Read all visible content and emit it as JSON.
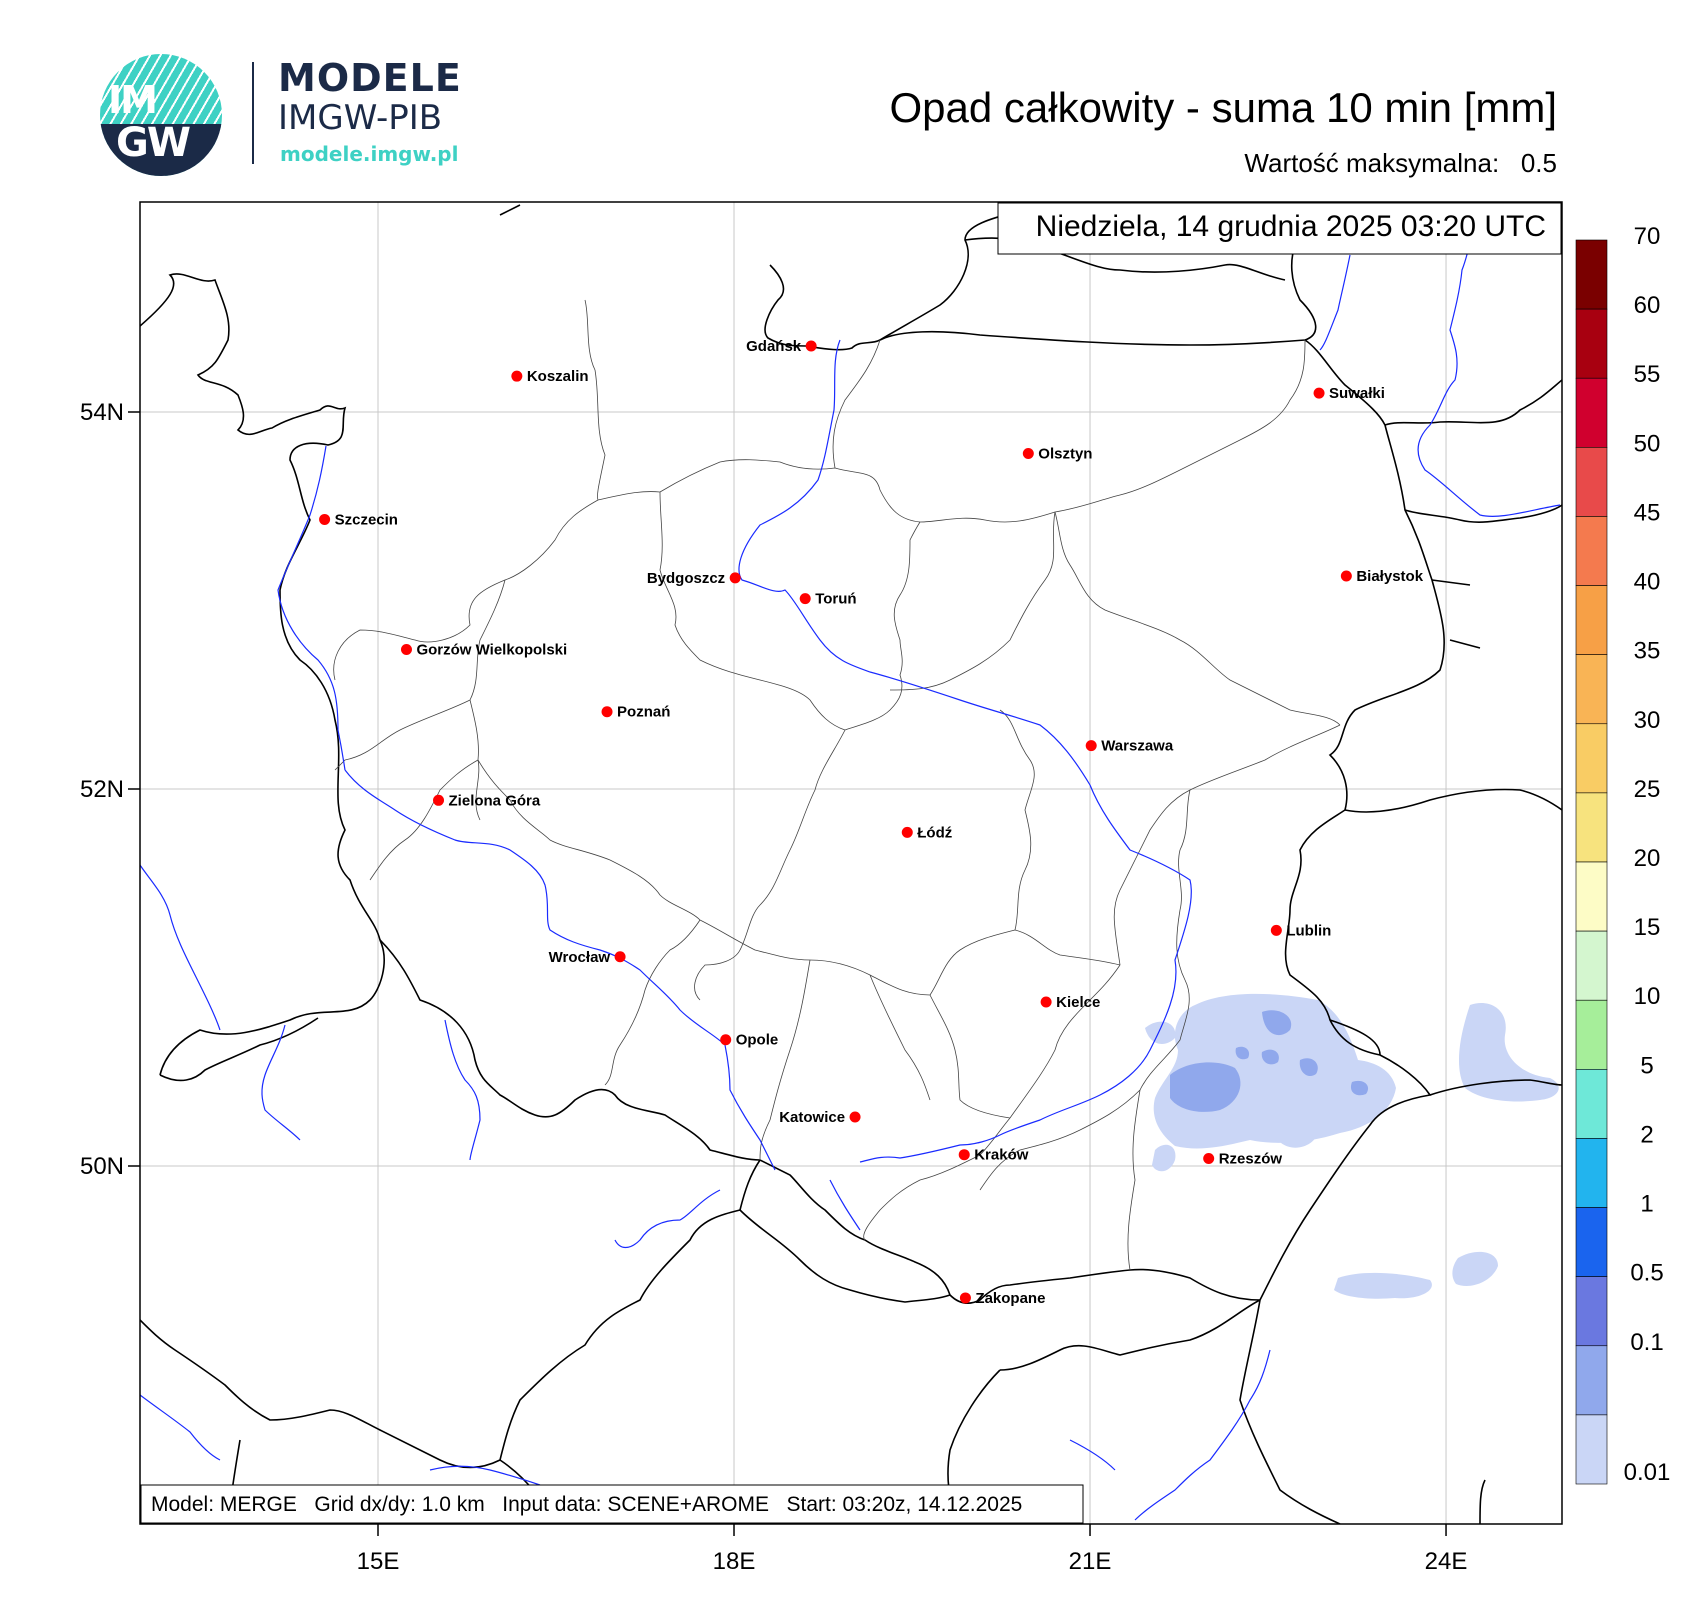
{
  "logo": {
    "text_top": "IM",
    "text_bottom": "GW",
    "name": "MODELE",
    "org": "IMGW-PIB",
    "url": "modele.imgw.pl"
  },
  "title": "Opad całkowity - suma 10 min [mm]",
  "max_label": "Wartość maksymalna:",
  "max_value": "0.5",
  "date": "Niedziela, 14 grudnia 2025 03:20 UTC",
  "info": "Model: MERGE   Grid dx/dy: 1.0 km   Input data: SCENE+AROME   Start: 03:20z, 14.12.2025",
  "lon_ticks": [
    {
      "lon": 15,
      "label": "15E"
    },
    {
      "lon": 18,
      "label": "18E"
    },
    {
      "lon": 21,
      "label": "21E"
    },
    {
      "lon": 24,
      "label": "24E"
    }
  ],
  "lat_ticks": [
    {
      "lat": 54,
      "label": "54N"
    },
    {
      "lat": 52,
      "label": "52N"
    },
    {
      "lat": 50,
      "label": "50N"
    }
  ],
  "colorbar": {
    "labels": [
      "70",
      "60",
      "55",
      "50",
      "45",
      "40",
      "35",
      "30",
      "25",
      "20",
      "15",
      "10",
      "5",
      "2",
      "1",
      "0.5",
      "0.1",
      "0.01"
    ],
    "colors": [
      "#7a0000",
      "#a80010",
      "#d0002e",
      "#e84a4a",
      "#f47a4e",
      "#f7a046",
      "#f9b455",
      "#f9cc64",
      "#f7e37e",
      "#fdfcc6",
      "#d4f6cf",
      "#a6ee9a",
      "#6ee8d8",
      "#22b4ee",
      "#1a64ee",
      "#6a78e0",
      "#90a8ec",
      "#cad6f6"
    ]
  },
  "cities": [
    {
      "name": "Gdańsk",
      "lon": 18.65,
      "lat": 54.35,
      "anchor": "end"
    },
    {
      "name": "Koszalin",
      "lon": 16.17,
      "lat": 54.19,
      "anchor": "start"
    },
    {
      "name": "Suwałki",
      "lon": 22.93,
      "lat": 54.1,
      "anchor": "start"
    },
    {
      "name": "Olsztyn",
      "lon": 20.48,
      "lat": 53.78,
      "anchor": "start"
    },
    {
      "name": "Szczecin",
      "lon": 14.55,
      "lat": 53.43,
      "anchor": "start"
    },
    {
      "name": "Białystok",
      "lon": 23.16,
      "lat": 53.13,
      "anchor": "start"
    },
    {
      "name": "Bydgoszcz",
      "lon": 18.01,
      "lat": 53.12,
      "anchor": "end"
    },
    {
      "name": "Toruń",
      "lon": 18.6,
      "lat": 53.01,
      "anchor": "start"
    },
    {
      "name": "Gorzów Wielkopolski",
      "lon": 15.24,
      "lat": 52.74,
      "anchor": "start"
    },
    {
      "name": "Poznań",
      "lon": 16.93,
      "lat": 52.41,
      "anchor": "start"
    },
    {
      "name": "Warszawa",
      "lon": 21.01,
      "lat": 52.23,
      "anchor": "start"
    },
    {
      "name": "Zielona Góra",
      "lon": 15.51,
      "lat": 51.94,
      "anchor": "start"
    },
    {
      "name": "Łódź",
      "lon": 19.46,
      "lat": 51.77,
      "anchor": "start"
    },
    {
      "name": "Lublin",
      "lon": 22.57,
      "lat": 51.25,
      "anchor": "start"
    },
    {
      "name": "Wrocław",
      "lon": 17.04,
      "lat": 51.11,
      "anchor": "end"
    },
    {
      "name": "Kielce",
      "lon": 20.63,
      "lat": 50.87,
      "anchor": "start"
    },
    {
      "name": "Opole",
      "lon": 17.93,
      "lat": 50.67,
      "anchor": "start"
    },
    {
      "name": "Katowice",
      "lon": 19.02,
      "lat": 50.26,
      "anchor": "end"
    },
    {
      "name": "Rzeszów",
      "lon": 22.0,
      "lat": 50.04,
      "anchor": "start"
    },
    {
      "name": "Kraków",
      "lon": 19.94,
      "lat": 50.06,
      "anchor": "start"
    },
    {
      "name": "Zakopane",
      "lon": 19.95,
      "lat": 49.3,
      "anchor": "start"
    }
  ]
}
